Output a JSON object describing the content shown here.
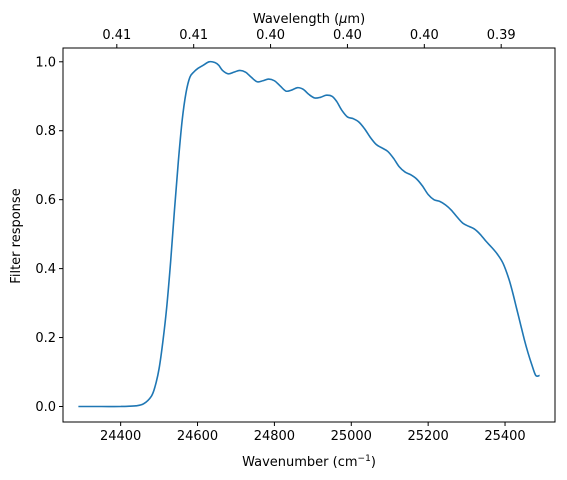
{
  "chart_data": {
    "type": "line",
    "xlabel_main": "Wavenumber (cm",
    "xlabel_sup": "−1",
    "xlabel_close": ")",
    "ylabel": "Filter response",
    "top_xlabel_main": "Wavelength (",
    "top_xlabel_mu": "μ",
    "top_xlabel_close": "m)",
    "xlim": [
      24250,
      25530
    ],
    "ylim": [
      -0.045,
      1.04
    ],
    "x_ticks": [
      24400,
      24600,
      24800,
      25000,
      25200,
      25400
    ],
    "y_ticks": [
      0.0,
      0.2,
      0.4,
      0.6,
      0.8,
      1.0
    ],
    "y_tick_labels": [
      "0.0",
      "0.2",
      "0.4",
      "0.6",
      "0.8",
      "1.0"
    ],
    "top_ticks": [
      {
        "x": 24390,
        "label": "0.41"
      },
      {
        "x": 24590,
        "label": "0.41"
      },
      {
        "x": 24790,
        "label": "0.40"
      },
      {
        "x": 24990,
        "label": "0.40"
      },
      {
        "x": 25190,
        "label": "0.40"
      },
      {
        "x": 25390,
        "label": "0.39"
      }
    ],
    "line_color": "#1f77b4",
    "series": [
      {
        "x": [
          24290,
          24350,
          24400,
          24440,
          24460,
          24480,
          24490,
          24500,
          24510,
          24520,
          24530,
          24540,
          24550,
          24560,
          24570,
          24580,
          24590,
          24600,
          24615,
          24630,
          24645,
          24655,
          24665,
          24680,
          24695,
          24710,
          24725,
          24740,
          24755,
          24770,
          24785,
          24800,
          24815,
          24830,
          24845,
          24860,
          24875,
          24890,
          24905,
          24920,
          24935,
          24950,
          24962,
          24975,
          24990,
          25005,
          25020,
          25035,
          25050,
          25065,
          25080,
          25095,
          25110,
          25125,
          25140,
          25155,
          25170,
          25185,
          25200,
          25215,
          25230,
          25245,
          25260,
          25275,
          25290,
          25305,
          25320,
          25335,
          25350,
          25365,
          25380,
          25395,
          25410,
          25420,
          25430,
          25440,
          25450,
          25460,
          25470,
          25480,
          25490
        ],
        "y": [
          0.0,
          0.0,
          0.0,
          0.002,
          0.008,
          0.03,
          0.06,
          0.11,
          0.19,
          0.29,
          0.42,
          0.57,
          0.71,
          0.83,
          0.91,
          0.955,
          0.97,
          0.98,
          0.99,
          1.0,
          0.998,
          0.99,
          0.975,
          0.965,
          0.97,
          0.975,
          0.97,
          0.955,
          0.942,
          0.945,
          0.95,
          0.945,
          0.93,
          0.915,
          0.918,
          0.925,
          0.92,
          0.905,
          0.895,
          0.897,
          0.903,
          0.9,
          0.885,
          0.86,
          0.84,
          0.835,
          0.825,
          0.805,
          0.78,
          0.76,
          0.75,
          0.74,
          0.72,
          0.695,
          0.68,
          0.672,
          0.66,
          0.64,
          0.615,
          0.6,
          0.595,
          0.585,
          0.57,
          0.55,
          0.532,
          0.523,
          0.515,
          0.5,
          0.48,
          0.462,
          0.442,
          0.415,
          0.37,
          0.33,
          0.285,
          0.24,
          0.195,
          0.155,
          0.12,
          0.09,
          0.09
        ]
      }
    ]
  }
}
